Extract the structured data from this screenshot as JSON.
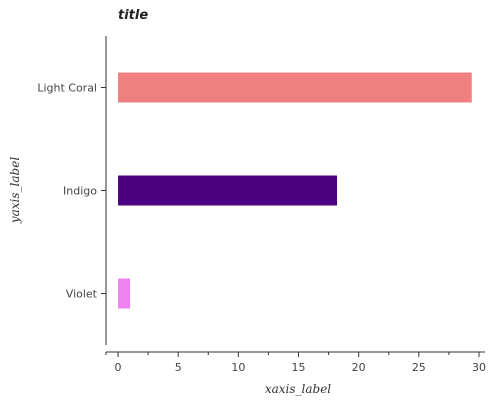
{
  "chart_data": {
    "type": "bar",
    "orientation": "horizontal",
    "title": "title",
    "xlabel": "xaxis_label",
    "ylabel": "yaxis_label",
    "categories": [
      "Violet",
      "Indigo",
      "Light Coral"
    ],
    "values": [
      1,
      18.2,
      29.4
    ],
    "colors": [
      "#ee82ee",
      "#4b0082",
      "#f08080"
    ],
    "xlim": [
      -1,
      30.5
    ],
    "xticks": [
      0,
      5,
      10,
      15,
      20,
      25,
      30
    ],
    "grid": false,
    "legend": "none"
  }
}
